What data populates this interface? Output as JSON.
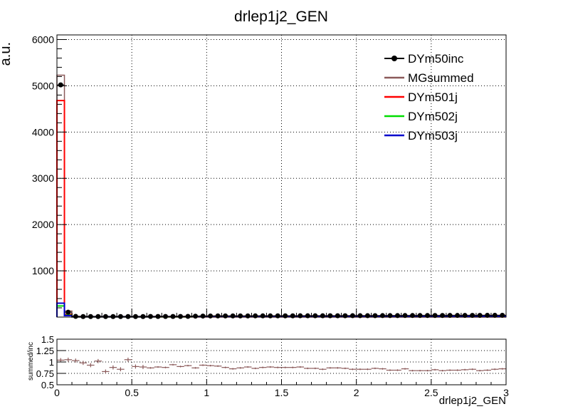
{
  "chart_data": [
    {
      "type": "line",
      "title": "drlep1j2_GEN",
      "ylabel": "a.u.",
      "xlabel": "",
      "xlim": [
        0,
        3
      ],
      "ylim": [
        0,
        6100
      ],
      "grid": true,
      "legend_position": "top-right",
      "x_ticks": [
        "0",
        "0.5",
        "1",
        "1.5",
        "2",
        "2.5",
        "3"
      ],
      "y_ticks": [
        {
          "v": 1000,
          "label": "1000"
        },
        {
          "v": 2000,
          "label": "2000"
        },
        {
          "v": 3000,
          "label": "3000"
        },
        {
          "v": 4000,
          "label": "4000"
        },
        {
          "v": 5000,
          "label": "5000"
        },
        {
          "v": 6000,
          "label": "6000"
        }
      ],
      "bin_width": 0.05,
      "series": [
        {
          "name": "DYm50inc",
          "color": "#000000",
          "style": "markers",
          "values": [
            5020,
            105,
            15,
            12,
            12,
            12,
            11,
            11,
            11,
            12,
            12,
            12,
            13,
            13,
            13,
            14,
            14,
            15,
            20,
            22,
            24,
            25,
            25,
            25,
            25,
            25,
            26,
            26,
            26,
            27,
            27,
            27,
            28,
            28,
            28,
            28,
            29,
            29,
            29,
            30,
            30,
            31,
            31,
            32,
            32,
            33,
            34,
            34,
            34,
            35,
            35,
            35,
            36,
            36,
            36,
            37,
            37,
            38,
            38,
            38
          ]
        },
        {
          "name": "MGsummed",
          "color": "#8b5a5a",
          "style": "step",
          "values": [
            5230,
            130,
            18,
            16,
            16,
            16,
            15,
            15,
            15,
            16,
            16,
            16,
            17,
            17,
            17,
            18,
            18,
            19,
            22,
            24,
            26,
            27,
            27,
            27,
            27,
            27,
            27,
            28,
            28,
            28,
            29,
            29,
            29,
            30,
            30,
            30,
            31,
            31,
            31,
            32,
            32,
            33,
            33,
            34,
            34,
            35,
            35,
            36,
            36,
            37,
            37,
            37,
            38,
            38,
            38,
            39,
            39,
            40,
            40,
            40
          ]
        },
        {
          "name": "DYm501j",
          "color": "#ff0000",
          "style": "step",
          "values": [
            4680,
            60,
            6,
            5,
            5,
            5,
            5,
            5,
            5,
            5,
            5,
            5,
            5,
            5,
            5,
            5,
            5,
            5,
            6,
            6,
            6,
            6,
            6,
            6,
            6,
            6,
            6,
            6,
            6,
            6,
            6,
            6,
            6,
            6,
            6,
            6,
            6,
            6,
            6,
            6,
            6,
            6,
            6,
            6,
            6,
            6,
            6,
            6,
            6,
            6,
            6,
            6,
            6,
            6,
            6,
            6,
            6,
            6,
            6,
            6
          ]
        },
        {
          "name": "DYm502j",
          "color": "#00dd00",
          "style": "step",
          "values": [
            240,
            40,
            6,
            5,
            5,
            5,
            5,
            5,
            5,
            5,
            5,
            5,
            5,
            5,
            5,
            6,
            6,
            6,
            10,
            11,
            12,
            12,
            12,
            12,
            12,
            12,
            12,
            12,
            12,
            12,
            12,
            12,
            12,
            13,
            13,
            13,
            13,
            13,
            13,
            13,
            13,
            13,
            13,
            13,
            13,
            13,
            13,
            13,
            13,
            13,
            13,
            13,
            13,
            13,
            13,
            13,
            13,
            13,
            13,
            13
          ]
        },
        {
          "name": "DYm503j",
          "color": "#0000cc",
          "style": "step",
          "values": [
            300,
            30,
            6,
            6,
            6,
            6,
            6,
            6,
            6,
            6,
            6,
            6,
            6,
            7,
            7,
            7,
            7,
            7,
            7,
            8,
            8,
            8,
            8,
            9,
            9,
            9,
            9,
            9,
            9,
            10,
            10,
            10,
            10,
            10,
            11,
            11,
            11,
            11,
            11,
            12,
            12,
            12,
            12,
            13,
            13,
            13,
            13,
            14,
            14,
            14,
            14,
            15,
            15,
            15,
            15,
            16,
            16,
            16,
            16,
            17
          ]
        }
      ]
    },
    {
      "type": "scatter",
      "title": "",
      "ylabel": "summed/inc",
      "xlabel": "drlep1j2_GEN",
      "xlim": [
        0,
        3
      ],
      "ylim": [
        0.5,
        1.5
      ],
      "grid": true,
      "x_ticks": [
        "0",
        "0.5",
        "1",
        "1.5",
        "2",
        "2.5",
        "3"
      ],
      "y_ticks": [
        {
          "v": 0.5,
          "label": "0.5"
        },
        {
          "v": 0.75,
          "label": "0.75"
        },
        {
          "v": 1.0,
          "label": "1"
        },
        {
          "v": 1.25,
          "label": "1.25"
        },
        {
          "v": 1.5,
          "label": "1.5"
        }
      ],
      "bin_width": 0.05,
      "series": [
        {
          "name": "",
          "color": "#8b5a5a",
          "values": [
            1.04,
            1.05,
            1.03,
            0.98,
            0.93,
            1.02,
            0.79,
            0.88,
            0.84,
            1.05,
            0.9,
            0.89,
            0.87,
            0.89,
            0.88,
            0.94,
            0.9,
            0.92,
            0.87,
            0.93,
            0.92,
            0.91,
            0.88,
            0.85,
            0.87,
            0.89,
            0.86,
            0.88,
            0.89,
            0.88,
            0.88,
            0.88,
            0.89,
            0.86,
            0.86,
            0.84,
            0.87,
            0.87,
            0.86,
            0.84,
            0.84,
            0.84,
            0.86,
            0.85,
            0.82,
            0.82,
            0.85,
            0.81,
            0.81,
            0.81,
            0.83,
            0.81,
            0.82,
            0.82,
            0.83,
            0.84,
            0.81,
            0.82,
            0.84,
            0.85
          ]
        }
      ]
    }
  ]
}
